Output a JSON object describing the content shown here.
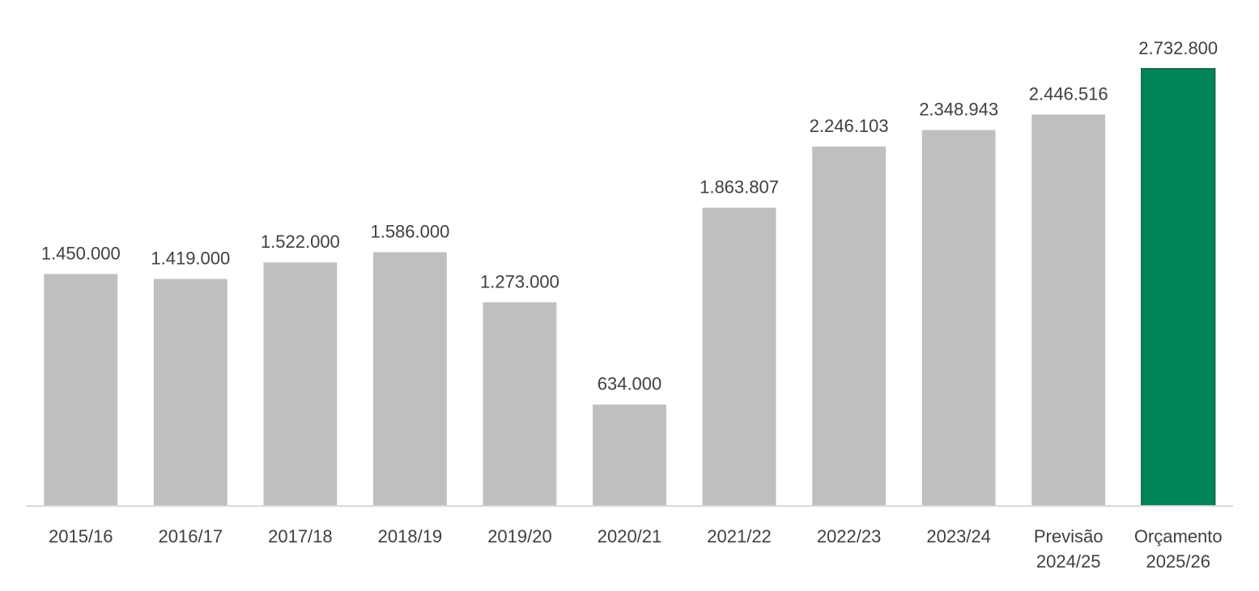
{
  "chart_data": {
    "type": "bar",
    "categories": [
      [
        "2015/16"
      ],
      [
        "2016/17"
      ],
      [
        "2017/18"
      ],
      [
        "2018/19"
      ],
      [
        "2019/20"
      ],
      [
        "2020/21"
      ],
      [
        "2021/22"
      ],
      [
        "2022/23"
      ],
      [
        "2023/24"
      ],
      [
        "Previsão",
        "2024/25"
      ],
      [
        "Orçamento",
        "2025/26"
      ]
    ],
    "values": [
      1450000,
      1419000,
      1522000,
      1586000,
      1273000,
      634000,
      1863807,
      2246103,
      2348943,
      2446516,
      2732800
    ],
    "value_labels": [
      "1.450.000",
      "1.419.000",
      "1.522.000",
      "1.586.000",
      "1.273.000",
      "634.000",
      "1.863.807",
      "2.246.103",
      "2.348.943",
      "2.446.516",
      "2.732.800"
    ],
    "colors": [
      "#bfbfbf",
      "#bfbfbf",
      "#bfbfbf",
      "#bfbfbf",
      "#bfbfbf",
      "#bfbfbf",
      "#bfbfbf",
      "#bfbfbf",
      "#bfbfbf",
      "#bfbfbf",
      "#008457"
    ],
    "ylim": [
      0,
      3000000
    ]
  }
}
